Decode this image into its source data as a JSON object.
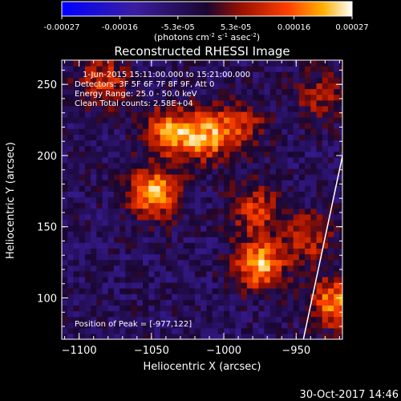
{
  "chart_data": {
    "type": "heatmap",
    "title": "Reconstructed RHESSI Image",
    "xlabel": "Heliocentric X (arcsec)",
    "ylabel": "Heliocentric Y (arcsec)",
    "xlim": [
      -1112,
      -918
    ],
    "ylim": [
      71,
      267
    ],
    "xticks": [
      -1100,
      -1050,
      -1000,
      -950
    ],
    "yticks": [
      100,
      150,
      200,
      250
    ],
    "colorbar": {
      "ticks": [
        "-0.00027",
        "-0.00016",
        "-5.3e-05",
        "5.3e-05",
        "0.00016",
        "0.00027"
      ],
      "range": [
        -0.00027,
        0.00027
      ],
      "unit_text": "(photons cm",
      "unit_exp1": "-2",
      "unit_mid": " s",
      "unit_exp2": "-1",
      "unit_mid2": " asec",
      "unit_exp3": "-2",
      "unit_close": ")"
    },
    "annotations": [
      "1-Jun-2015 15:11:00.000 to 15:21:00.000",
      "Detectors: 3F 5F 6F 7F 8F 9F, Att 0",
      "Energy Range: 25.0 - 50.0 keV",
      "Clean    Total counts: 2.58E+04"
    ],
    "peak_label": "Position of Peak = [-977,122]",
    "peak": [
      -977,
      122
    ],
    "limb": [
      [
        -915,
        214
      ],
      [
        -945,
        71
      ]
    ],
    "sources": [
      {
        "x": -1050,
        "y": 172,
        "strength": 0.00027
      },
      {
        "x": -1040,
        "y": 215,
        "strength": 0.00022
      },
      {
        "x": -1015,
        "y": 212,
        "strength": 0.00024
      },
      {
        "x": -990,
        "y": 220,
        "strength": 0.00014
      },
      {
        "x": -980,
        "y": 160,
        "strength": 0.00016
      },
      {
        "x": -977,
        "y": 122,
        "strength": 0.00027
      },
      {
        "x": -945,
        "y": 140,
        "strength": 0.00015
      },
      {
        "x": -925,
        "y": 95,
        "strength": 0.00024
      },
      {
        "x": -1085,
        "y": 250,
        "strength": 0.00016
      },
      {
        "x": -935,
        "y": 240,
        "strength": 0.00012
      }
    ]
  },
  "footer": {
    "timestamp": "30-Oct-2017 14:46"
  }
}
